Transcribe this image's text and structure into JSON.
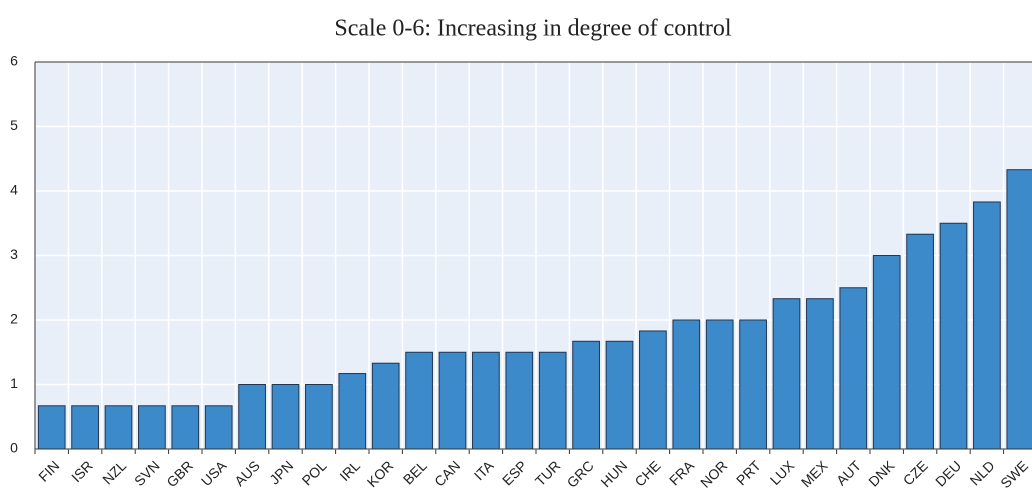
{
  "chart_data": {
    "type": "bar",
    "title": "Scale 0-6: Increasing in degree of control",
    "categories": [
      "FIN",
      "ISR",
      "NZL",
      "SVN",
      "GBR",
      "USA",
      "AUS",
      "JPN",
      "POL",
      "IRL",
      "KOR",
      "BEL",
      "CAN",
      "ITA",
      "ESP",
      "TUR",
      "GRC",
      "HUN",
      "CHE",
      "FRA",
      "NOR",
      "PRT",
      "LUX",
      "MEX",
      "AUT",
      "DNK",
      "CZE",
      "DEU",
      "NLD",
      "SWE"
    ],
    "values": [
      0.67,
      0.67,
      0.67,
      0.67,
      0.67,
      0.67,
      1,
      1,
      1,
      1.17,
      1.33,
      1.5,
      1.5,
      1.5,
      1.5,
      1.5,
      1.67,
      1.67,
      1.83,
      2,
      2,
      2,
      2.33,
      2.33,
      2.5,
      3,
      3.33,
      3.5,
      3.83,
      4.33
    ],
    "color": "#3d8acb",
    "ylim": [
      0,
      6
    ],
    "yticks": [
      0,
      1,
      2,
      3,
      4,
      5,
      6
    ],
    "grid": true
  }
}
